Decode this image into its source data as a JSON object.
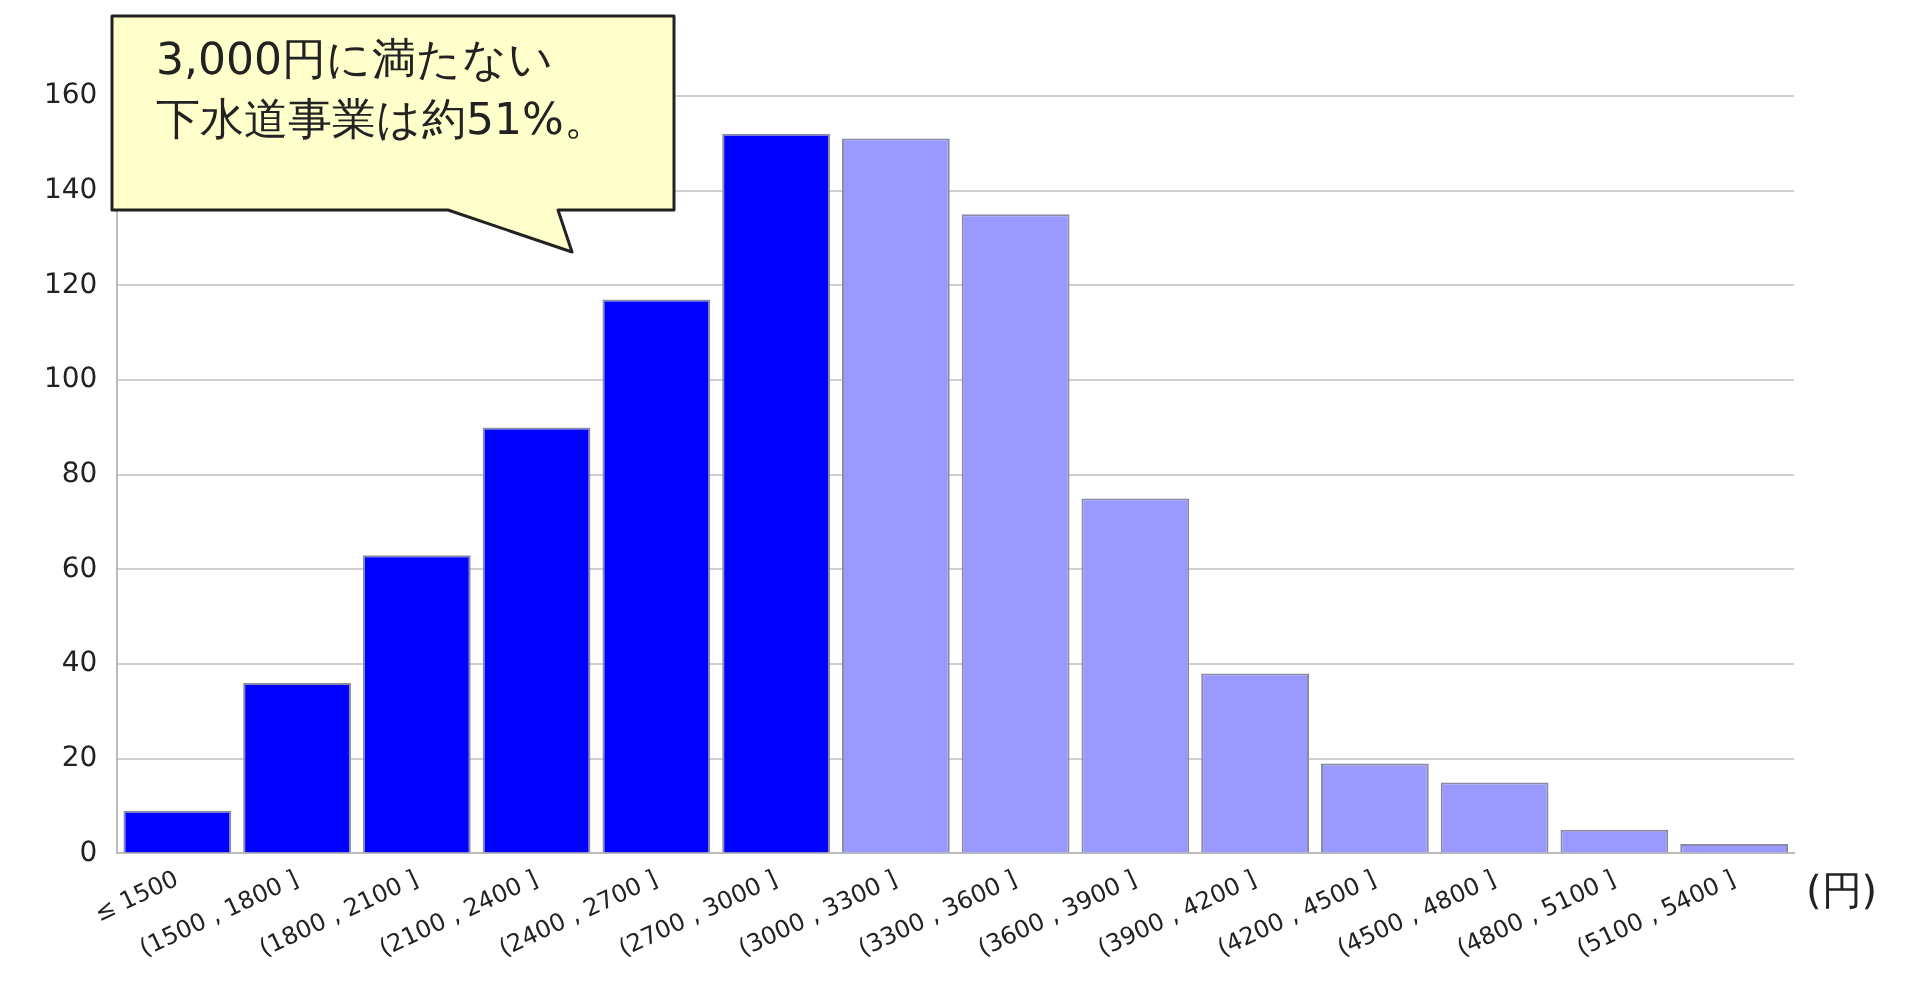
{
  "chart_data": {
    "type": "bar",
    "xlabel": "(円)",
    "annotations": [
      "3,000円に満たない",
      "下水道事業は約51%。"
    ],
    "categories": [
      "≤ 1500",
      "(1500 , 1800 ]",
      "(1800 , 2100 ]",
      "(2100 , 2400 ]",
      "(2400 , 2700 ]",
      "(2700 , 3000 ]",
      "(3000 , 3300 ]",
      "(3300 , 3600 ]",
      "(3600 , 3900 ]",
      "(3900 , 4200 ]",
      "(4200 , 4500 ]",
      "(4500 , 4800 ]",
      "(4800 , 5100 ]",
      "(5100 , 5400 ]"
    ],
    "values": [
      9,
      36,
      63,
      90,
      117,
      152,
      151,
      135,
      75,
      38,
      19,
      15,
      5,
      2
    ],
    "colors": [
      "#0000ff",
      "#0000ff",
      "#0000ff",
      "#0000ff",
      "#0000ff",
      "#0000ff",
      "#9999ff",
      "#9999ff",
      "#9999ff",
      "#9999ff",
      "#9999ff",
      "#9999ff",
      "#9999ff",
      "#9999ff"
    ],
    "ylim": [
      0,
      160
    ],
    "yticks": [
      0,
      20,
      40,
      60,
      80,
      100,
      120,
      140,
      160
    ],
    "grid": "y"
  }
}
